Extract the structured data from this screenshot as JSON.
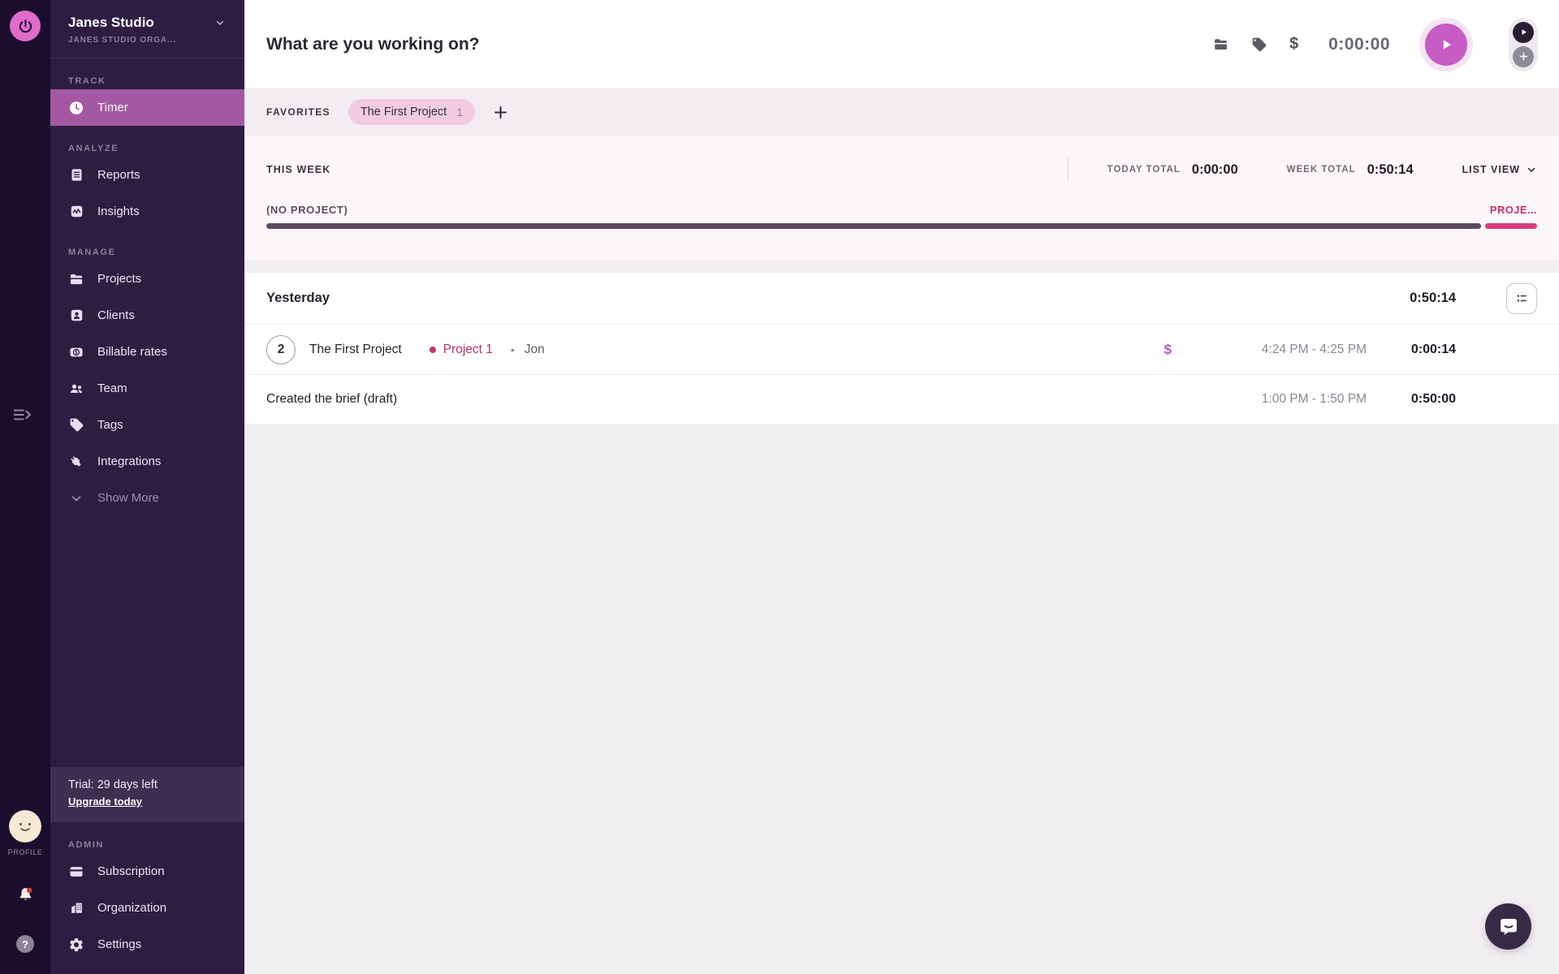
{
  "colors": {
    "brand_pink": "#df6cc8",
    "play_button_pink": "#c65cc4",
    "sidebar_active": "#a458a2",
    "project_pink_bar": "#da3d79",
    "no_project_bar": "#5c4a5e",
    "project_text": "#b7335c",
    "billable_purple": "#b05cbf",
    "notification_red": "#d63a31"
  },
  "icons": {
    "logo": "power-symbol",
    "timer": "clock",
    "reports": "journal-lines",
    "insights": "pulse-chart",
    "projects": "folder",
    "clients": "person-card",
    "billable_rates": "dollar-badge",
    "team": "two-people",
    "tags": "tag",
    "integrations": "plug",
    "show_more": "chevron-down",
    "subscription": "credit-card",
    "organization": "building",
    "settings": "gear",
    "expand_sidebar": "menu-arrow-right",
    "bell": "bell-with-red-dot",
    "help": "question-mark-circle",
    "topbar": [
      "folder",
      "tag",
      "dollar"
    ],
    "start": "play-triangle",
    "timer_mode": "play-circle-dark",
    "manual_mode": "plus-circle-gray",
    "list_view_button": "bulleted-list",
    "chat": "speech-bubble-smile"
  },
  "rail": {
    "profile_label": "PROFILE"
  },
  "sidebar": {
    "org_name": "Janes Studio",
    "org_subtitle": "JANES STUDIO ORGA...",
    "sections": [
      {
        "label": "TRACK",
        "items": [
          {
            "label": "Timer",
            "active": true
          }
        ]
      },
      {
        "label": "ANALYZE",
        "items": [
          {
            "label": "Reports"
          },
          {
            "label": "Insights"
          }
        ]
      },
      {
        "label": "MANAGE",
        "items": [
          {
            "label": "Projects"
          },
          {
            "label": "Clients"
          },
          {
            "label": "Billable rates"
          },
          {
            "label": "Team"
          },
          {
            "label": "Tags"
          },
          {
            "label": "Integrations"
          },
          {
            "label": "Show More"
          }
        ]
      },
      {
        "label": "ADMIN",
        "items": [
          {
            "label": "Subscription"
          },
          {
            "label": "Organization"
          },
          {
            "label": "Settings"
          }
        ]
      }
    ],
    "trial": {
      "text": "Trial: 29 days left",
      "link_label": "Upgrade today"
    }
  },
  "topbar": {
    "placeholder": "What are you working on?",
    "timer_value": "0:00:00"
  },
  "favorites": {
    "label": "FAVORITES",
    "chip_label": "The First Project",
    "chip_count": "1"
  },
  "week": {
    "label": "THIS WEEK",
    "today_total_label": "TODAY TOTAL",
    "today_total": "0:00:00",
    "week_total_label": "WEEK TOTAL",
    "week_total": "0:50:14",
    "view_label": "LIST VIEW",
    "bar": {
      "no_project_label": "(NO PROJECT)",
      "project_label": "PROJE...",
      "no_project_pct": 95.6,
      "project_pct": 4.1
    }
  },
  "entries": {
    "day_label": "Yesterday",
    "day_total": "0:50:14",
    "rows": [
      {
        "group_count": "2",
        "title": "The First Project",
        "project": "Project 1",
        "separator": "•",
        "member": "Jon",
        "billable_symbol": "$",
        "time_range": "4:24 PM - 4:25 PM",
        "duration": "0:00:14"
      },
      {
        "title": "Created the brief (draft)",
        "time_range": "1:00 PM - 1:50 PM",
        "duration": "0:50:00"
      }
    ]
  },
  "help_symbol": "?"
}
